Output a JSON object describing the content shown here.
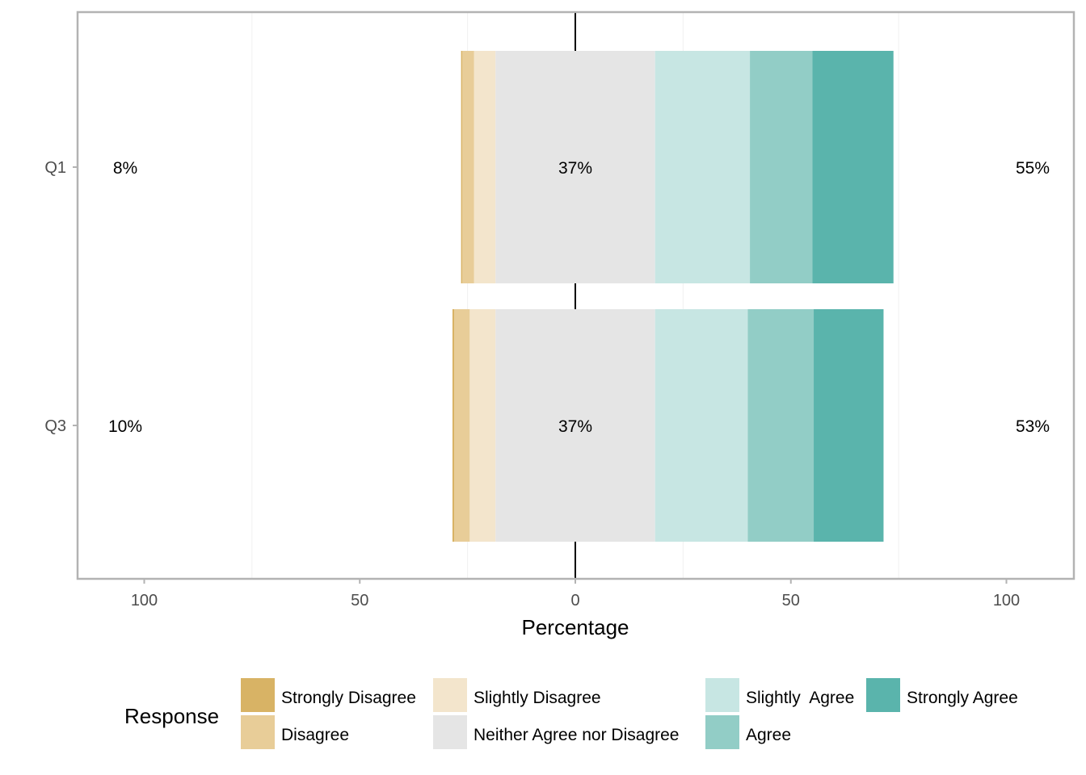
{
  "chart_data": {
    "type": "bar",
    "subtype": "diverging-stacked-horizontal",
    "xlabel": "Percentage",
    "xlim": [
      -100,
      100
    ],
    "x_ticks": [
      -100,
      -50,
      0,
      50,
      100
    ],
    "x_tick_labels": [
      "100",
      "50",
      "0",
      "50",
      "100"
    ],
    "grid": false,
    "categories": [
      "Q1",
      "Q3"
    ],
    "series": [
      {
        "name": "Strongly Disagree",
        "color": "#D8B365",
        "values": [
          0.3,
          0.4
        ]
      },
      {
        "name": "Disagree",
        "color": "#E8CD98",
        "values": [
          2.7,
          3.6
        ]
      },
      {
        "name": "Slightly Disagree",
        "color": "#F3E5CC",
        "values": [
          5.0,
          6.0
        ]
      },
      {
        "name": "Neither Agree nor Disagree",
        "color": "#E5E5E5",
        "values": [
          37,
          37
        ]
      },
      {
        "name": "Slightly  Agree",
        "color": "#C7E6E3",
        "values": [
          22,
          21.5
        ]
      },
      {
        "name": "Agree",
        "color": "#92CDC6",
        "values": [
          14.5,
          15.3
        ]
      },
      {
        "name": "Strongly Agree",
        "color": "#5AB4AC",
        "values": [
          18.8,
          16.2
        ]
      }
    ],
    "left_labels": [
      "8%",
      "10%"
    ],
    "center_labels": [
      "37%",
      "37%"
    ],
    "right_labels": [
      "55%",
      "53%"
    ],
    "legend": {
      "title": "Response",
      "position": "bottom",
      "entries": [
        "Strongly Disagree",
        "Disagree",
        "Slightly Disagree",
        "Neither Agree nor Disagree",
        "Slightly  Agree",
        "Agree",
        "Strongly Agree"
      ]
    }
  }
}
